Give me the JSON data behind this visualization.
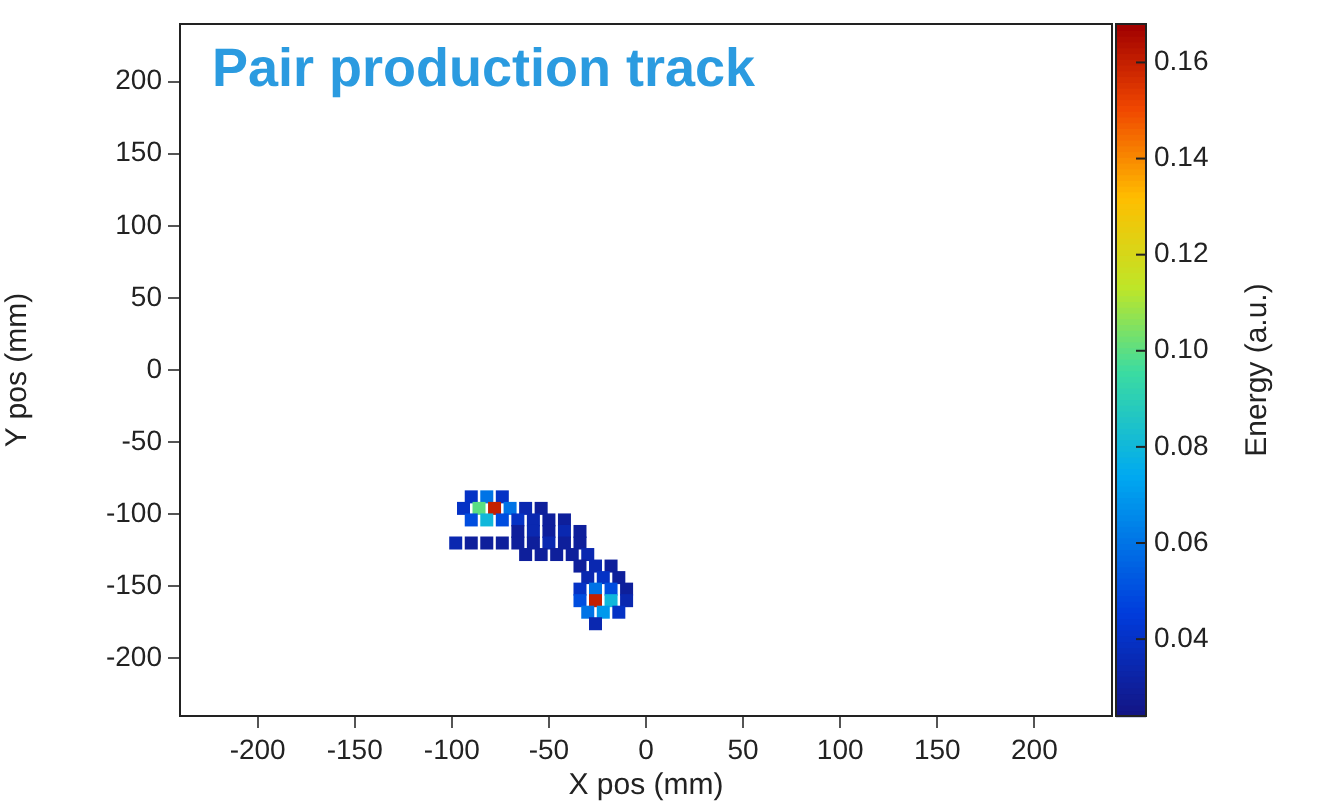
{
  "chart_data": {
    "type": "scatter",
    "title": "Pair production track",
    "xlabel": "X pos (mm)",
    "ylabel": "Y pos (mm)",
    "clabel": "Energy (a.u.)",
    "marker": "square",
    "grid": false,
    "legend": false,
    "xlim": [
      -240,
      240
    ],
    "ylim": [
      -240,
      240
    ],
    "xticks": [
      -200,
      -150,
      -100,
      -50,
      0,
      50,
      100,
      150,
      200
    ],
    "yticks": [
      -200,
      -150,
      -100,
      -50,
      0,
      50,
      100,
      150,
      200
    ],
    "clim": [
      0.024,
      0.168
    ],
    "cticks": [
      {
        "value": 0.04,
        "label": "0.04"
      },
      {
        "value": 0.06,
        "label": "0.06"
      },
      {
        "value": 0.08,
        "label": "0.08"
      },
      {
        "value": 0.1,
        "label": "0.10"
      },
      {
        "value": 0.12,
        "label": "0.12"
      },
      {
        "value": 0.14,
        "label": "0.14"
      },
      {
        "value": 0.16,
        "label": "0.16"
      }
    ],
    "x": [
      -90,
      -82,
      -74,
      -94,
      -86,
      -78,
      -70,
      -62,
      -54,
      -90,
      -82,
      -74,
      -66,
      -58,
      -50,
      -42,
      -66,
      -58,
      -50,
      -42,
      -34,
      -98,
      -90,
      -82,
      -74,
      -66,
      -58,
      -50,
      -42,
      -34,
      -62,
      -54,
      -46,
      -38,
      -30,
      -34,
      -26,
      -18,
      -30,
      -22,
      -14,
      -34,
      -26,
      -18,
      -10,
      -34,
      -26,
      -18,
      -10,
      -30,
      -22,
      -14,
      -26
    ],
    "values": [
      -88,
      -88,
      -88,
      -96,
      -96,
      -96,
      -96,
      -96,
      -96,
      -104,
      -104,
      -104,
      -104,
      -104,
      -104,
      -104,
      -112,
      -112,
      -112,
      -112,
      -112,
      -120,
      -120,
      -120,
      -120,
      -120,
      -120,
      -120,
      -120,
      -120,
      -128,
      -128,
      -128,
      -128,
      -128,
      -136,
      -136,
      -136,
      -144,
      -144,
      -144,
      -152,
      -152,
      -152,
      -152,
      -160,
      -160,
      -160,
      -160,
      -168,
      -168,
      -168,
      -176
    ],
    "cvalues": [
      0.04,
      0.06,
      0.04,
      0.04,
      0.1,
      0.16,
      0.06,
      0.035,
      0.03,
      0.05,
      0.08,
      0.05,
      0.04,
      0.035,
      0.03,
      0.03,
      0.03,
      0.035,
      0.03,
      0.035,
      0.03,
      0.035,
      0.03,
      0.03,
      0.03,
      0.03,
      0.03,
      0.035,
      0.03,
      0.03,
      0.03,
      0.03,
      0.03,
      0.03,
      0.035,
      0.03,
      0.035,
      0.03,
      0.035,
      0.04,
      0.03,
      0.04,
      0.06,
      0.05,
      0.03,
      0.05,
      0.16,
      0.08,
      0.035,
      0.06,
      0.07,
      0.04,
      0.035
    ]
  }
}
